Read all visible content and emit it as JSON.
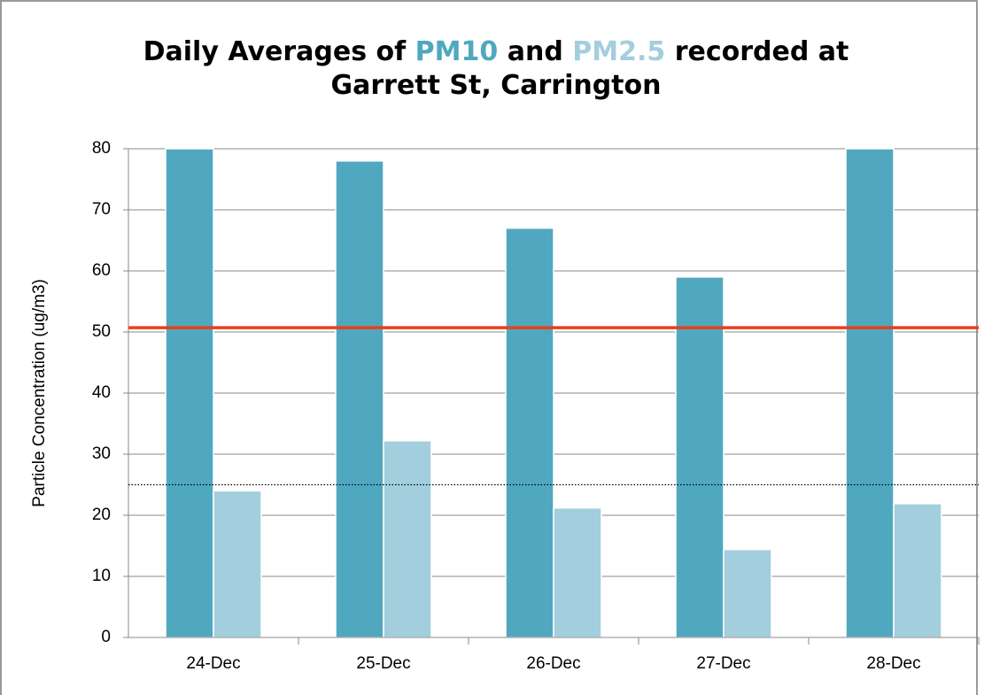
{
  "chart_data": {
    "type": "bar",
    "title_parts": [
      "Daily Averages of",
      "and",
      "recorded at Garrett St, Carrington"
    ],
    "y_label": "Particle Concentration (ug/m3)",
    "categories": [
      "24-Dec",
      "25-Dec",
      "26-Dec",
      "27-Dec",
      "28-Dec"
    ],
    "series": [
      {
        "name": "PM10",
        "color": "#4fa8c0",
        "values": [
          80,
          78,
          67,
          59,
          80
        ]
      },
      {
        "name": "PM2.5",
        "color": "#a3cedd",
        "values": [
          24,
          32.2,
          21.2,
          14.4,
          21.9
        ]
      }
    ],
    "reference_lines": [
      {
        "value": 50.7,
        "color": "#e8401c",
        "style": "solid"
      },
      {
        "value": 25,
        "color": "#000000",
        "style": "dotted"
      }
    ],
    "ylim": [
      0,
      80
    ],
    "yticks": [
      0,
      10,
      20,
      30,
      40,
      50,
      60,
      70,
      80
    ],
    "grid": true
  }
}
